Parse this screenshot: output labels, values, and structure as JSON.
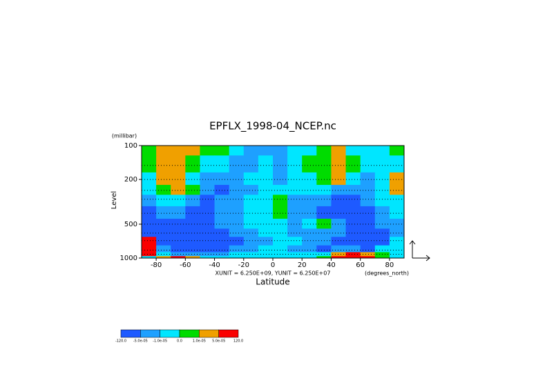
{
  "chart_data": {
    "type": "contour",
    "title": "EPFLX_1998-04_NCEP.nc",
    "y_unit_label": "(millibar)",
    "y_label": "Level",
    "x_label": "Latitude",
    "x_unit_label": "(degrees_north)",
    "vector_scale_label": "XUNIT = 6.250E+09, YUNIT = 6.250E+07",
    "xlim": [
      -90,
      90
    ],
    "xticks": [
      -80,
      -60,
      -40,
      -20,
      0,
      20,
      40,
      60,
      80
    ],
    "ylim": [
      1000,
      100
    ],
    "y_log": true,
    "yticks": [
      100,
      200,
      500,
      1000
    ],
    "levels": [
      100,
      150,
      200,
      250,
      300,
      400,
      500,
      600,
      700,
      850,
      925,
      1000
    ],
    "x": [
      -85,
      -75,
      -65,
      -55,
      -45,
      -35,
      -25,
      -15,
      -5,
      5,
      15,
      25,
      35,
      45,
      55,
      65,
      75,
      85
    ],
    "z": [
      [
        5e-06,
        3e-05,
        3e-05,
        3e-05,
        5e-06,
        5e-06,
        -5e-06,
        -3e-05,
        -3e-05,
        -3e-05,
        -5e-06,
        -5e-06,
        5e-06,
        3e-05,
        -5e-06,
        -5e-06,
        -5e-06,
        5e-06
      ],
      [
        5e-06,
        3e-05,
        3e-05,
        5e-06,
        -5e-06,
        -5e-06,
        -3e-05,
        -3e-05,
        -5e-06,
        -3e-05,
        -5e-06,
        5e-06,
        5e-06,
        3e-05,
        5e-06,
        -5e-06,
        -5e-06,
        -5e-06
      ],
      [
        -5e-06,
        3e-05,
        3e-05,
        -5e-06,
        -3e-05,
        -3e-05,
        -3e-05,
        -5e-06,
        -5e-06,
        -3e-05,
        -5e-06,
        -5e-06,
        5e-06,
        3e-05,
        -5e-06,
        -3e-05,
        -5e-06,
        3e-05
      ],
      [
        -5e-06,
        5e-06,
        3e-05,
        5e-06,
        -3e-05,
        -8e-05,
        -3e-05,
        -3e-05,
        -5e-06,
        -5e-06,
        -5e-06,
        -5e-06,
        -5e-06,
        -3e-05,
        -3e-05,
        -3e-05,
        -5e-06,
        3e-05
      ],
      [
        -3e-05,
        -5e-06,
        -5e-06,
        -3e-05,
        -8e-05,
        -3e-05,
        -3e-05,
        -5e-06,
        -5e-06,
        5e-06,
        -3e-05,
        -3e-05,
        -3e-05,
        -8e-05,
        -8e-05,
        -3e-05,
        -5e-06,
        -5e-06
      ],
      [
        -8e-05,
        -3e-05,
        -3e-05,
        -8e-05,
        -8e-05,
        -3e-05,
        -3e-05,
        -5e-06,
        -5e-06,
        5e-06,
        -3e-05,
        -3e-05,
        -8e-05,
        -8e-05,
        -8e-05,
        -8e-05,
        -3e-05,
        -5e-06
      ],
      [
        -8e-05,
        -8e-05,
        -8e-05,
        -8e-05,
        -8e-05,
        -3e-05,
        -3e-05,
        -5e-06,
        -5e-06,
        -5e-06,
        -3e-05,
        -5e-06,
        5e-06,
        -3e-05,
        -8e-05,
        -8e-05,
        -3e-05,
        -3e-05
      ],
      [
        -8e-05,
        -8e-05,
        -8e-05,
        -8e-05,
        -8e-05,
        -8e-05,
        -3e-05,
        -3e-05,
        -5e-06,
        -5e-06,
        -3e-05,
        -3e-05,
        -3e-05,
        -3e-05,
        -8e-05,
        -8e-05,
        -8e-05,
        -3e-05
      ],
      [
        8e-05,
        -8e-05,
        -8e-05,
        -8e-05,
        -8e-05,
        -8e-05,
        -8e-05,
        -3e-05,
        -3e-05,
        -5e-06,
        -5e-06,
        -3e-05,
        -3e-05,
        -8e-05,
        -8e-05,
        -8e-05,
        -8e-05,
        -5e-06
      ],
      [
        8e-05,
        -3e-05,
        -8e-05,
        -8e-05,
        -8e-05,
        -8e-05,
        -3e-05,
        -3e-05,
        -5e-06,
        -5e-06,
        -3e-05,
        -3e-05,
        -8e-05,
        -3e-05,
        -3e-05,
        -8e-05,
        -5e-06,
        -5e-06
      ],
      [
        8e-05,
        -5e-06,
        -3e-05,
        -3e-05,
        -3e-05,
        -3e-05,
        -5e-06,
        -5e-06,
        -5e-06,
        -5e-06,
        -5e-06,
        -5e-06,
        -5e-06,
        3e-05,
        8e-05,
        3e-05,
        5e-06,
        -5e-06
      ],
      [
        -5e-06,
        3e-05,
        8e-05,
        3e-05,
        -5e-06,
        -5e-06,
        -5e-06,
        -5e-06,
        -5e-06,
        -5e-06,
        -5e-06,
        -5e-06,
        5e-06,
        8e-05,
        8e-05,
        8e-05,
        5e-06,
        -5e-06
      ]
    ],
    "color_levels": [
      {
        "value": -120,
        "label": "-120.0"
      },
      {
        "value": -5e-05,
        "label": "-5.0e-05"
      },
      {
        "value": -1e-05,
        "label": "-1.0e-05"
      },
      {
        "value": 0,
        "label": "0.0"
      },
      {
        "value": 1e-05,
        "label": "1.0e-05"
      },
      {
        "value": 5e-05,
        "label": "5.0e-05"
      },
      {
        "value": 120,
        "label": "120.0"
      }
    ],
    "colors": [
      "#1e5aff",
      "#1ea0ff",
      "#00e6ff",
      "#00dc00",
      "#f0a000",
      "#fa0000"
    ],
    "grid": true
  }
}
